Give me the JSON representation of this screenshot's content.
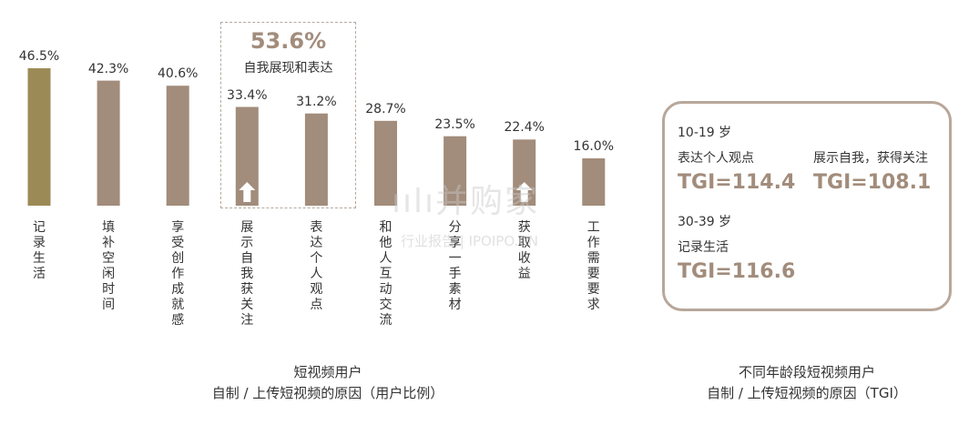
{
  "chart_data": {
    "type": "bar",
    "categories": [
      "记录生活",
      "填补空闲时间",
      "享受创作成就感",
      "展示自我获关注",
      "表达个人观点",
      "和他人互动交流",
      "分享一手素材",
      "获取收益",
      "工作需要要求"
    ],
    "values": [
      46.5,
      42.3,
      40.6,
      33.4,
      31.2,
      28.7,
      23.5,
      22.4,
      16.0
    ],
    "value_labels": [
      "46.5%",
      "42.3%",
      "40.6%",
      "33.4%",
      "31.2%",
      "28.7%",
      "23.5%",
      "22.4%",
      "16.0%"
    ],
    "ylim": [
      0,
      50
    ],
    "grid": false,
    "highlight_group": {
      "value": "53.6%",
      "label": "自我展现和表达",
      "members": [
        "展示自我获关注",
        "表达个人观点"
      ]
    },
    "caption": [
      "短视频用户",
      "自制 / 上传短视频的原因（用户比例）"
    ]
  },
  "colors": {
    "bar": "#a28c7b",
    "first_bar": "#9c8a56",
    "accent": "#a28c7b",
    "card_border": "#b8a79a"
  },
  "tgi_card": {
    "group1": "10-19 岁",
    "item1_label": "表达个人观点",
    "item1_value": "TGI=114.4",
    "item2_label": "展示自我，获得关注",
    "item2_value": "TGI=108.1",
    "group2": "30-39 岁",
    "item3_label": "记录生活",
    "item3_value": "TGI=116.6",
    "caption": [
      "不同年龄段短视频用户",
      "自制 / 上传短视频的原因（TGI）"
    ]
  },
  "watermark": {
    "main": "ıılı并购家",
    "sub": "行业报告 | IPOIPO.CN"
  }
}
